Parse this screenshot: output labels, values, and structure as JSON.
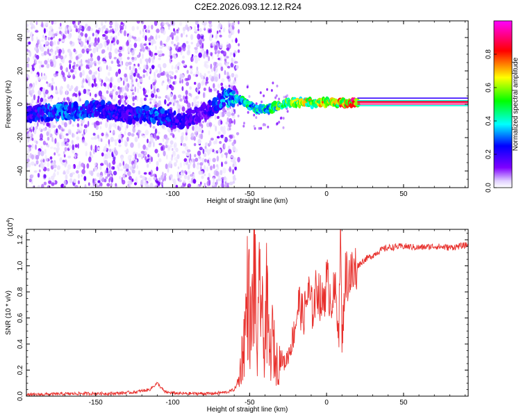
{
  "chart_data": [
    {
      "type": "heatmap",
      "title": "C2E2.2026.093.12.12.R24",
      "xlabel": "Height of straight line (km)",
      "ylabel": "Frequency (Hz)",
      "xlim": [
        -195,
        92
      ],
      "ylim": [
        -50,
        50
      ],
      "x_ticks": [
        "-150",
        "-100",
        "-50",
        "0",
        "50"
      ],
      "y_ticks": [
        "-40",
        "-20",
        "0",
        "20",
        "40"
      ],
      "colorbar": {
        "label": "Normalized spectral amplitude",
        "range": [
          0.0,
          1.0
        ],
        "ticks": [
          "0.0",
          "0.2",
          "0.4",
          "0.6",
          "0.8"
        ],
        "colormap": [
          "#ffffff",
          "#7f00ff",
          "#0000ff",
          "#00ffff",
          "#00ff00",
          "#ffff00",
          "#ff0000",
          "#ff00ff"
        ]
      },
      "noise_floor_end_km": -65,
      "ridge": [
        {
          "x": -190,
          "y": -6,
          "v": 0.25
        },
        {
          "x": -175,
          "y": -5,
          "v": 0.3
        },
        {
          "x": -160,
          "y": -4,
          "v": 0.3
        },
        {
          "x": -150,
          "y": -3,
          "v": 0.28
        },
        {
          "x": -140,
          "y": -4,
          "v": 0.25
        },
        {
          "x": -130,
          "y": -6,
          "v": 0.2
        },
        {
          "x": -120,
          "y": -6,
          "v": 0.3
        },
        {
          "x": -110,
          "y": -7,
          "v": 0.3
        },
        {
          "x": -95,
          "y": -10,
          "v": 0.22
        },
        {
          "x": -80,
          "y": -5,
          "v": 0.15
        },
        {
          "x": -65,
          "y": 4,
          "v": 0.35
        },
        {
          "x": -55,
          "y": 2,
          "v": 0.45
        },
        {
          "x": -45,
          "y": -3,
          "v": 0.45
        },
        {
          "x": -35,
          "y": -2,
          "v": 0.5
        },
        {
          "x": -25,
          "y": 1,
          "v": 0.6
        },
        {
          "x": -15,
          "y": 1,
          "v": 0.65
        },
        {
          "x": -5,
          "y": 1,
          "v": 0.7
        },
        {
          "x": 5,
          "y": 1,
          "v": 0.75
        },
        {
          "x": 15,
          "y": 1,
          "v": 0.8
        },
        {
          "x": 25,
          "y": 1.5,
          "v": 0.9
        },
        {
          "x": 40,
          "y": 1.5,
          "v": 1.0
        },
        {
          "x": 60,
          "y": 1.5,
          "v": 1.0
        },
        {
          "x": 80,
          "y": 1.5,
          "v": 1.0
        },
        {
          "x": 92,
          "y": 1.5,
          "v": 1.0
        }
      ]
    },
    {
      "type": "line",
      "xlabel": "Height of straight line (km)",
      "ylabel": "SNR (10 * v/v)",
      "y_multiplier": "(x10",
      "y_multiplier_exp": "4",
      "y_multiplier_close": ")",
      "xlim": [
        -195,
        92
      ],
      "ylim": [
        0,
        1.28
      ],
      "x_ticks": [
        "-150",
        "-100",
        "-50",
        "0",
        "50"
      ],
      "y_ticks": [
        "0.0",
        "0.2",
        "0.4",
        "0.6",
        "0.8",
        "1.0",
        "1.2"
      ],
      "color": "#e8302c",
      "series": [
        {
          "x": [
            -195,
            -180,
            -160,
            -140,
            -125,
            -115,
            -110,
            -105,
            -95,
            -85,
            -75,
            -65,
            -60,
            -57,
            -55,
            -53,
            -51,
            -49,
            -47,
            -45,
            -43,
            -41,
            -39,
            -37,
            -35,
            -33,
            -30,
            -27,
            -24,
            -21,
            -18,
            -15,
            -12,
            -9,
            -6,
            -3,
            0,
            3,
            6,
            8,
            9,
            10,
            12,
            14,
            17,
            20,
            25,
            30,
            35,
            40,
            50,
            60,
            70,
            80,
            92
          ],
          "y": [
            0.01,
            0.015,
            0.02,
            0.02,
            0.03,
            0.05,
            0.1,
            0.03,
            0.02,
            0.02,
            0.02,
            0.03,
            0.05,
            0.12,
            0.3,
            0.5,
            0.85,
            0.45,
            1.0,
            0.3,
            0.95,
            0.35,
            0.7,
            0.3,
            0.45,
            0.25,
            0.3,
            0.25,
            0.35,
            0.5,
            0.72,
            0.6,
            0.8,
            0.65,
            0.85,
            0.7,
            0.88,
            0.75,
            0.78,
            0.5,
            1.28,
            0.4,
            0.9,
            0.95,
            0.92,
            1.0,
            1.05,
            1.08,
            1.12,
            1.14,
            1.15,
            1.14,
            1.15,
            1.14,
            1.16
          ]
        }
      ]
    }
  ]
}
